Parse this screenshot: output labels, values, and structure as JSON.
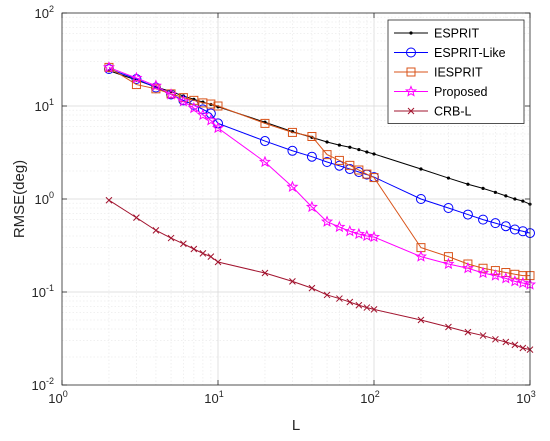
{
  "chart_data": {
    "type": "line",
    "xlabel": "L",
    "ylabel": "RMSE(deg)",
    "x_scale": "log",
    "y_scale": "log",
    "xlim": [
      1,
      1000
    ],
    "ylim": [
      0.01,
      100
    ],
    "x_ticks": [
      {
        "value": 1,
        "base": "10",
        "exp": "0"
      },
      {
        "value": 10,
        "base": "10",
        "exp": "1"
      },
      {
        "value": 100,
        "base": "10",
        "exp": "2"
      },
      {
        "value": 1000,
        "base": "10",
        "exp": "3"
      }
    ],
    "y_ticks": [
      {
        "value": 0.01,
        "base": "10",
        "exp": "-2"
      },
      {
        "value": 0.1,
        "base": "10",
        "exp": "-1"
      },
      {
        "value": 1,
        "base": "10",
        "exp": "0"
      },
      {
        "value": 10,
        "base": "10",
        "exp": "1"
      },
      {
        "value": 100,
        "base": "10",
        "exp": "2"
      }
    ],
    "grid": true,
    "legend_position": "top-right",
    "x": [
      2,
      3,
      4,
      5,
      6,
      7,
      8,
      9,
      10,
      20,
      30,
      40,
      50,
      60,
      70,
      80,
      90,
      100,
      200,
      300,
      400,
      500,
      600,
      700,
      800,
      900,
      1000
    ],
    "series": [
      {
        "name": "ESPRIT",
        "color": "#000000",
        "marker": "dot",
        "values": [
          24,
          19,
          16,
          14.3,
          12.8,
          11.8,
          11,
          10.4,
          9.8,
          6.7,
          5.3,
          4.6,
          4.1,
          3.8,
          3.6,
          3.4,
          3.2,
          3.05,
          2.1,
          1.68,
          1.44,
          1.3,
          1.18,
          1.08,
          1.0,
          0.95,
          0.88
        ]
      },
      {
        "name": "ESPRIT-Like",
        "color": "#0000ff",
        "marker": "circle",
        "values": [
          25,
          19.5,
          15.8,
          13.3,
          11.5,
          10.3,
          9.2,
          8.3,
          6.5,
          4.2,
          3.3,
          2.85,
          2.5,
          2.28,
          2.1,
          1.95,
          1.83,
          1.72,
          1.0,
          0.8,
          0.68,
          0.6,
          0.55,
          0.51,
          0.47,
          0.45,
          0.43
        ]
      },
      {
        "name": "IESPRIT",
        "color": "#d95319",
        "marker": "square",
        "values": [
          26,
          17,
          15.3,
          13.5,
          12.3,
          11.5,
          10.8,
          10.5,
          10,
          6.5,
          5.2,
          4.7,
          3.0,
          2.6,
          2.3,
          2.05,
          1.85,
          1.7,
          0.3,
          0.24,
          0.2,
          0.18,
          0.17,
          0.162,
          0.155,
          0.15,
          0.15
        ]
      },
      {
        "name": "Proposed",
        "color": "#ff00ff",
        "marker": "star",
        "values": [
          26,
          20,
          16.5,
          13.3,
          11.2,
          9.5,
          8.0,
          7.0,
          5.8,
          2.5,
          1.35,
          0.82,
          0.57,
          0.5,
          0.45,
          0.42,
          0.4,
          0.39,
          0.24,
          0.2,
          0.18,
          0.16,
          0.15,
          0.14,
          0.13,
          0.125,
          0.12
        ]
      },
      {
        "name": "CRB-L",
        "color": "#a2142f",
        "marker": "x",
        "values": [
          0.97,
          0.63,
          0.46,
          0.38,
          0.33,
          0.29,
          0.26,
          0.24,
          0.21,
          0.16,
          0.13,
          0.11,
          0.093,
          0.085,
          0.078,
          0.072,
          0.068,
          0.065,
          0.05,
          0.042,
          0.037,
          0.034,
          0.031,
          0.029,
          0.027,
          0.025,
          0.024
        ]
      }
    ]
  }
}
